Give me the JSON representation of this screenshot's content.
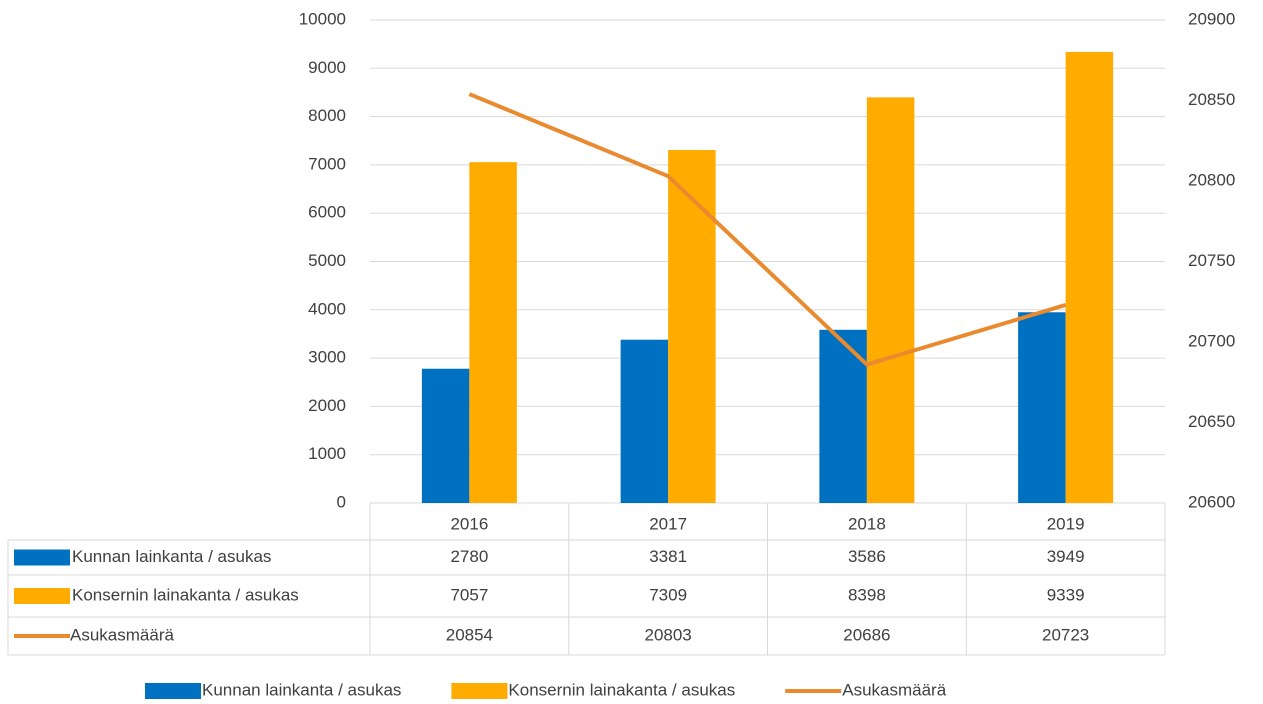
{
  "chart_data": {
    "type": "bar",
    "categories": [
      "2016",
      "2017",
      "2018",
      "2019"
    ],
    "series": [
      {
        "name": "Kunnan lainkanta / asukas",
        "color": "#0070c0",
        "values": [
          2780,
          3381,
          3586,
          3949
        ]
      },
      {
        "name": "Konsernin lainakanta / asukas",
        "color": "#ffab00",
        "values": [
          7057,
          7309,
          8398,
          9339
        ]
      },
      {
        "name": "Asukasmäärä",
        "color": "#ea8a2f",
        "type": "line",
        "axis": "y2",
        "values": [
          20854,
          20803,
          20686,
          20723
        ]
      }
    ],
    "ylim": [
      0,
      10000
    ],
    "yticks": [
      0,
      1000,
      2000,
      3000,
      4000,
      5000,
      6000,
      7000,
      8000,
      9000,
      10000
    ],
    "y2lim": [
      20600,
      20900
    ],
    "y2ticks": [
      20600,
      20650,
      20700,
      20750,
      20800,
      20850,
      20900
    ],
    "grid": true,
    "legend": "bottom",
    "data_table": true
  }
}
